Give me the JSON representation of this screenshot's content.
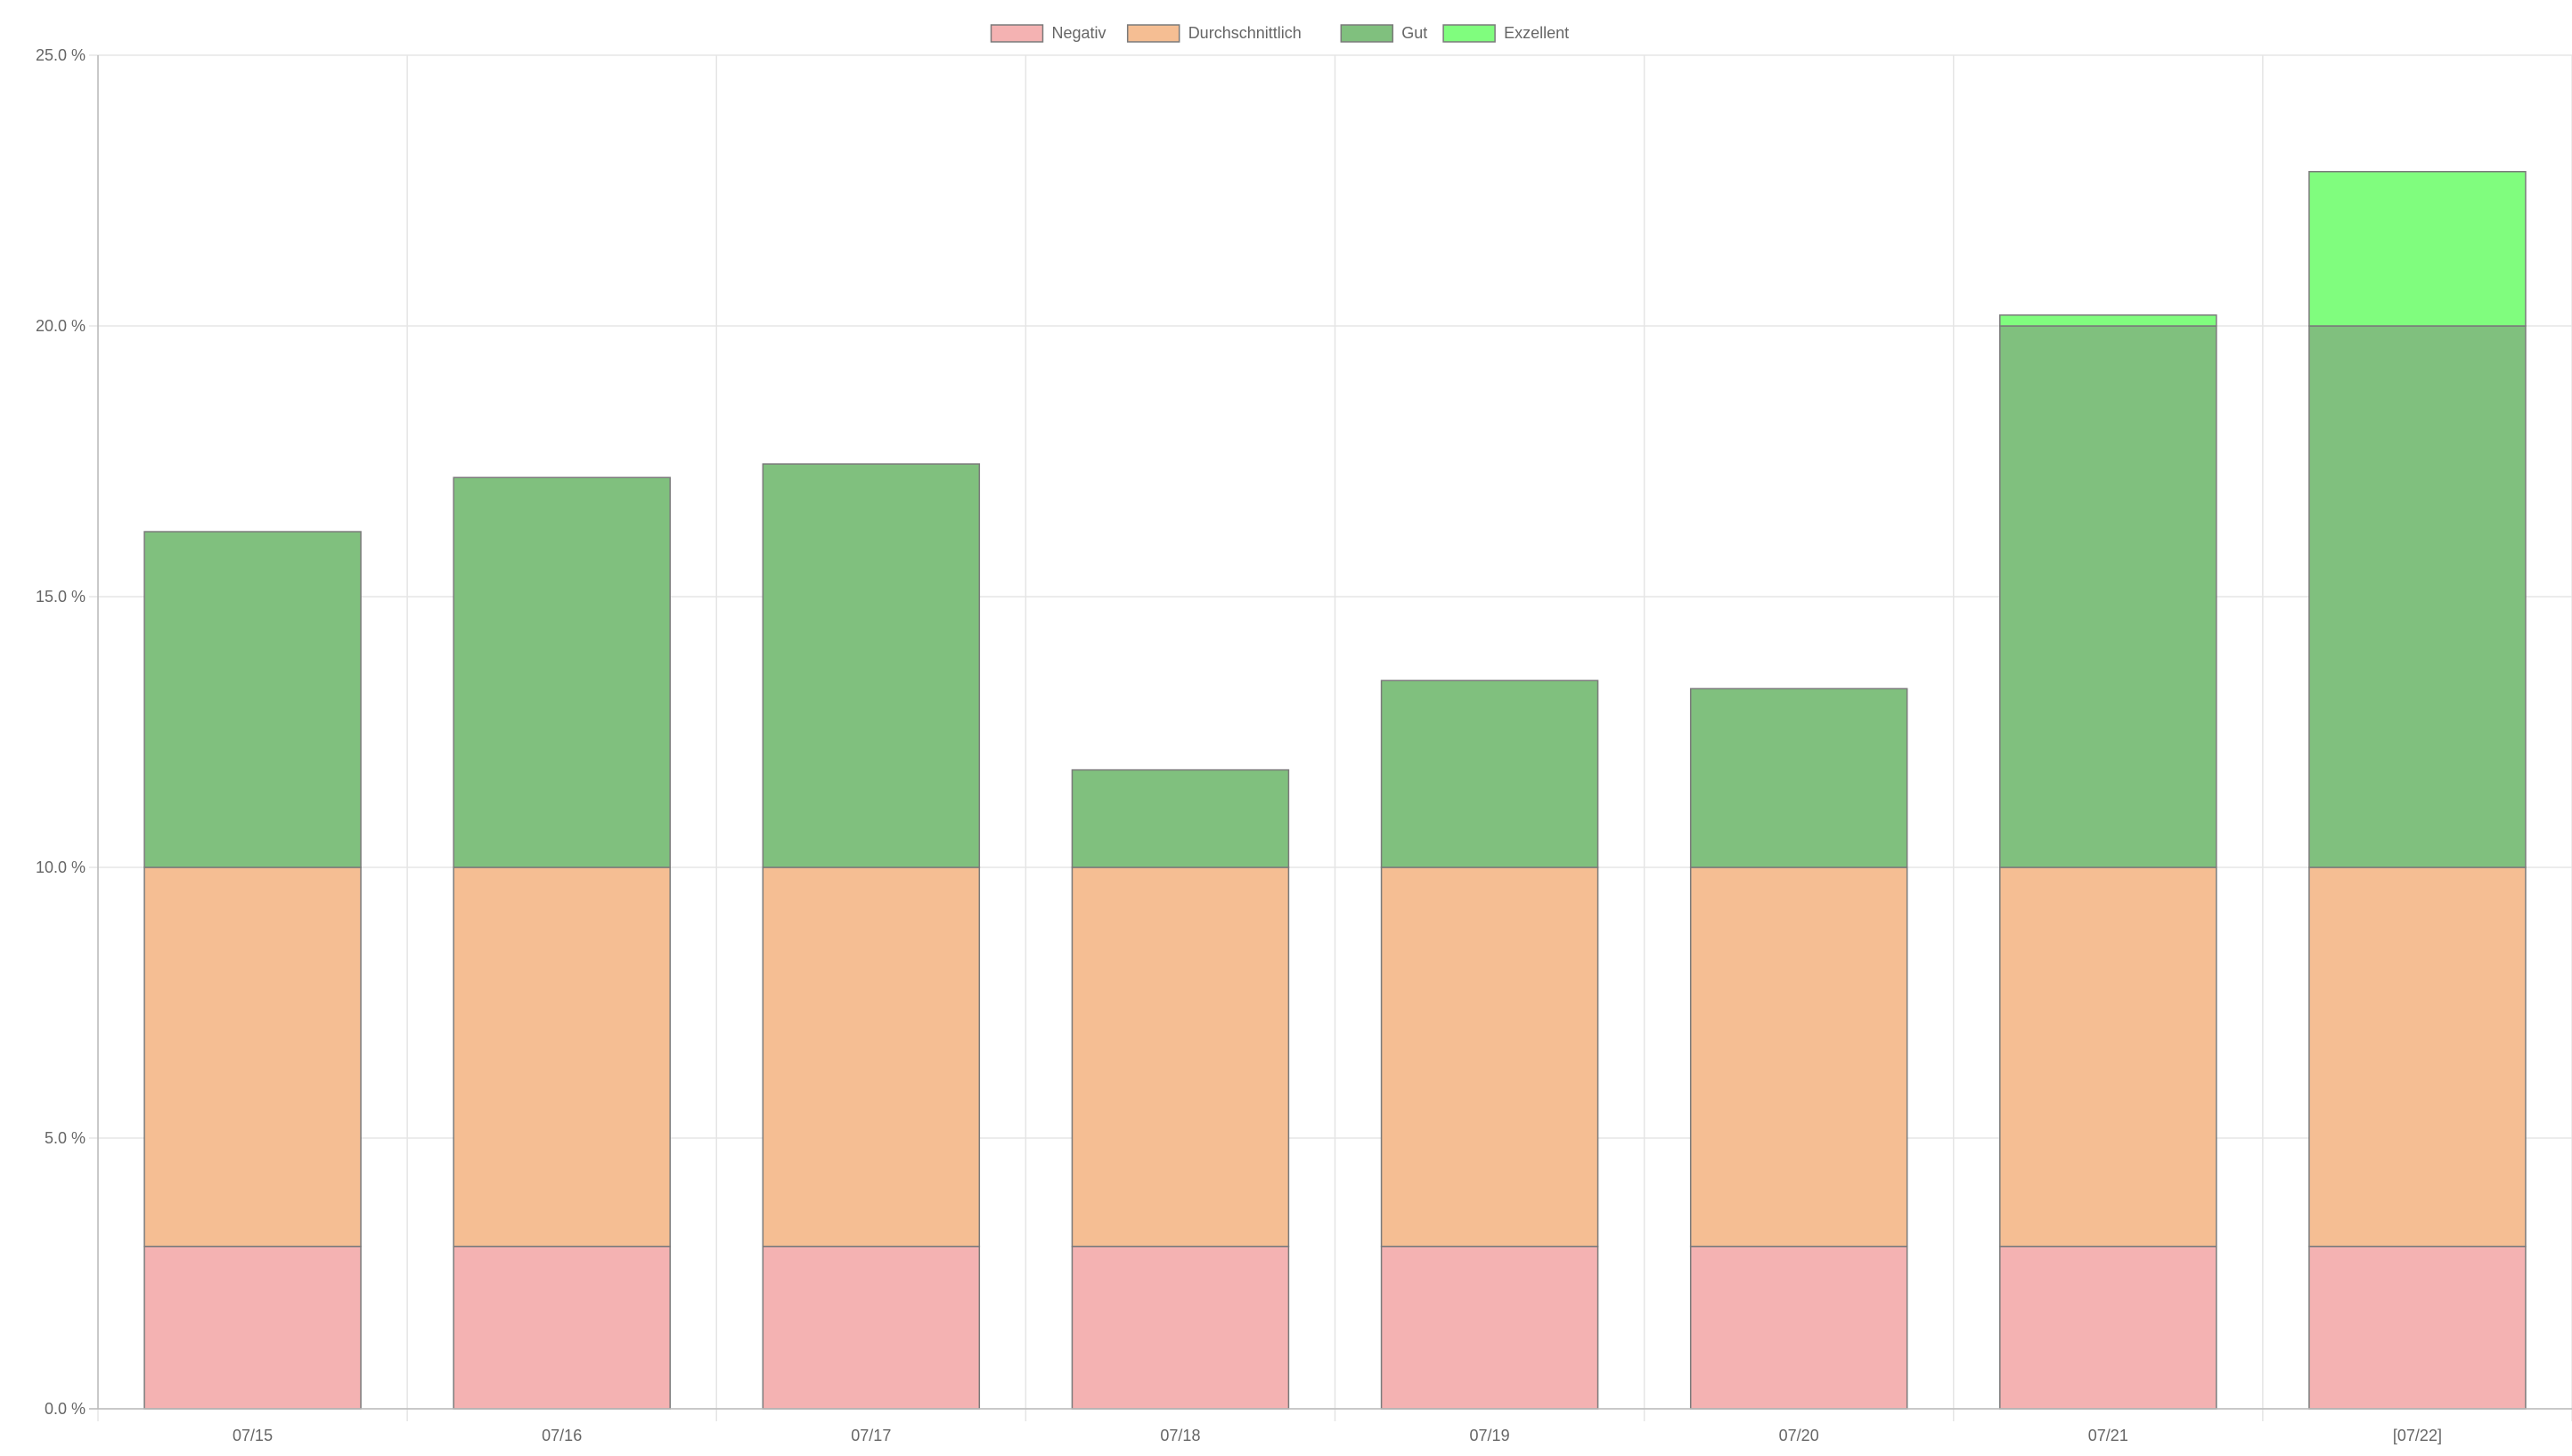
{
  "chart_data": {
    "type": "bar",
    "stacked": true,
    "title": "",
    "xlabel": "",
    "ylabel": "",
    "ylim": [
      0,
      25
    ],
    "y_ticks": [
      0,
      5,
      10,
      15,
      20,
      25
    ],
    "y_tick_labels": [
      "0.0 %",
      "5.0 %",
      "10.0 %",
      "15.0 %",
      "20.0 %",
      "25.0 %"
    ],
    "grid": true,
    "legend_position": "top-center",
    "categories": [
      "07/15",
      "07/16",
      "07/17",
      "07/18",
      "07/19",
      "07/20",
      "07/21",
      "[07/22]"
    ],
    "series": [
      {
        "name": "Negativ",
        "color": "#f4b2b2",
        "values": [
          3,
          3,
          3,
          3,
          3,
          3,
          3,
          3
        ]
      },
      {
        "name": "Durchschnittlich",
        "color": "#f5be93",
        "values": [
          7,
          7,
          7,
          7,
          7,
          7,
          7,
          7
        ]
      },
      {
        "name": "Gut",
        "color": "#80c07e",
        "values": [
          6.2,
          7.2,
          7.45,
          1.8,
          3.45,
          3.3,
          10,
          10
        ]
      },
      {
        "name": "Exzellent",
        "color": "#80fd7e",
        "values": [
          0,
          0,
          0,
          0,
          0,
          0,
          0.2,
          2.85
        ]
      }
    ],
    "bar_border_color": "#7a7a7a",
    "grid_color": "#e5e5e5",
    "axis_color": "#bbbbbb"
  }
}
